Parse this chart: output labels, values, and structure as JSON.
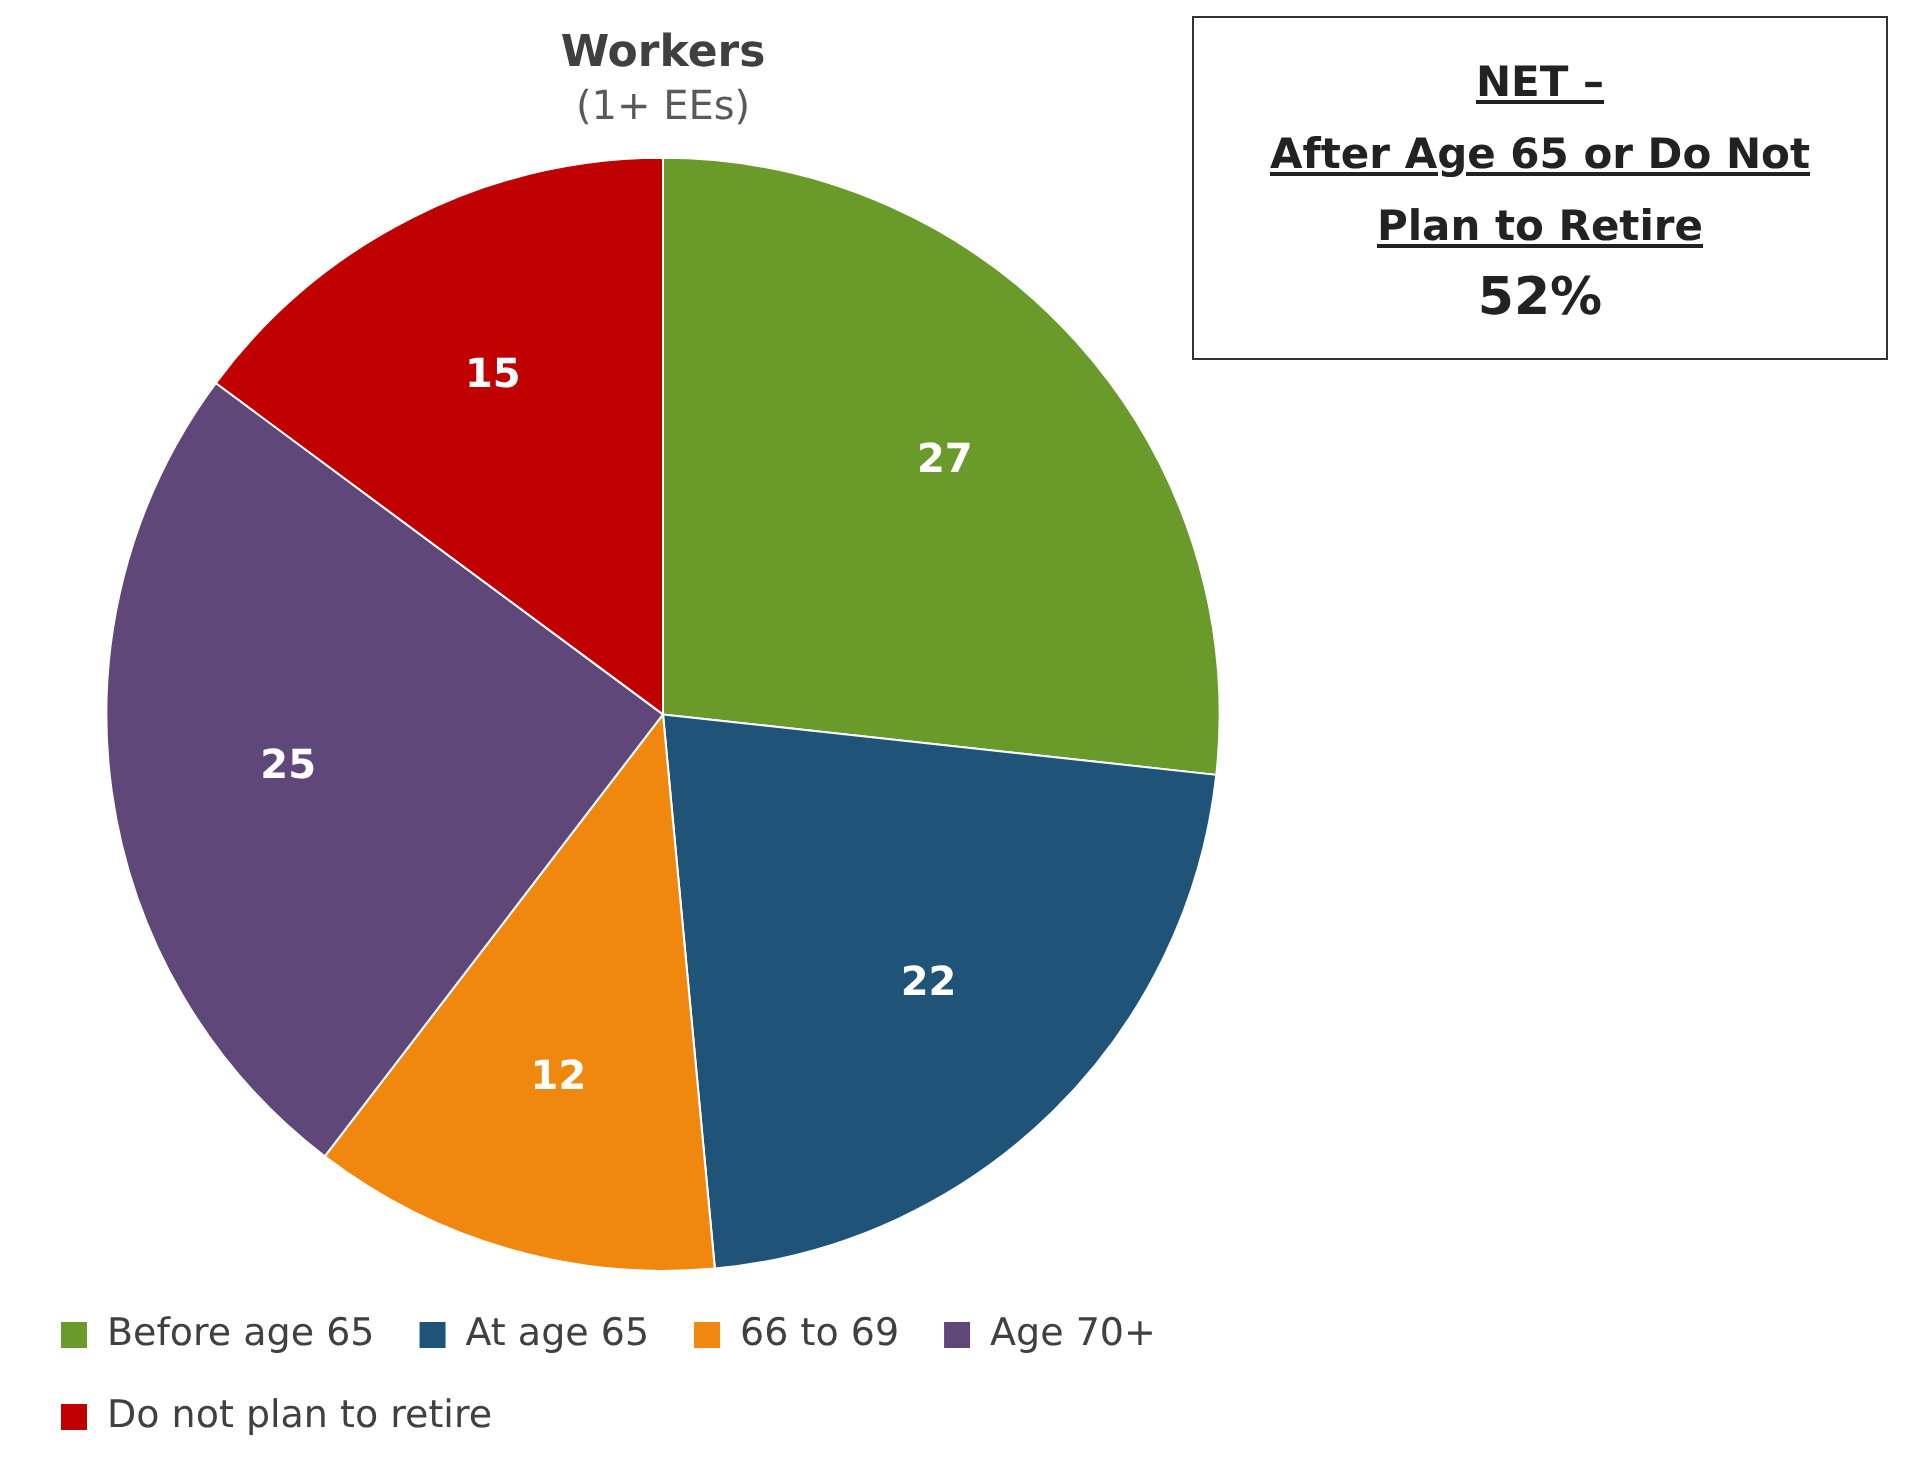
{
  "chart_data": {
    "type": "pie",
    "title": "Workers",
    "subtitle": "(1+ EEs)",
    "categories": [
      "Before age 65",
      "At age 65",
      "66 to 69",
      "Age 70+",
      "Do not plan to retire"
    ],
    "values": [
      27,
      22,
      12,
      25,
      15
    ],
    "colors": [
      "#6a9a2a",
      "#1f5478",
      "#f0880f",
      "#60477a",
      "#c00000"
    ],
    "data_labels": true,
    "legend": "bottom",
    "annotations": [
      "NET –\nAfter Age 65 or Do Not\nPlan to Retire",
      "52%"
    ]
  }
}
